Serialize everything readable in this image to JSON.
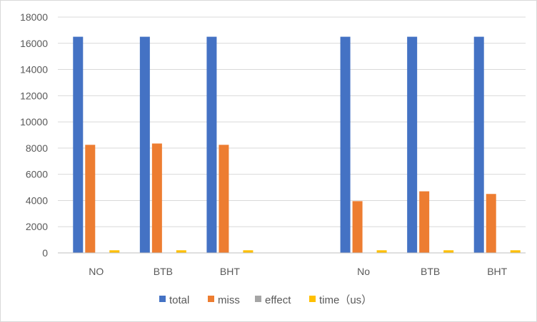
{
  "chart_data": {
    "type": "bar",
    "title": "",
    "xlabel": "",
    "ylabel": "",
    "ylim": [
      0,
      18000
    ],
    "yticks": [
      0,
      2000,
      4000,
      6000,
      8000,
      10000,
      12000,
      14000,
      16000,
      18000
    ],
    "grid": true,
    "legend_position": "bottom",
    "categories": [
      "NO",
      "BTB",
      "BHT",
      "",
      "No",
      "BTB",
      "BHT"
    ],
    "series": [
      {
        "name": "total",
        "color": "#4472C4",
        "values": [
          16500,
          16500,
          16500,
          null,
          16500,
          16500,
          16500
        ]
      },
      {
        "name": "miss",
        "color": "#ED7D31",
        "values": [
          8250,
          8350,
          8250,
          null,
          3950,
          4700,
          4500
        ]
      },
      {
        "name": "effect",
        "color": "#A5A5A5",
        "values": [
          0,
          0,
          0,
          null,
          0,
          0,
          0
        ]
      },
      {
        "name": "time（us）",
        "color": "#FFC000",
        "values": [
          200,
          200,
          200,
          null,
          200,
          200,
          200
        ]
      }
    ]
  }
}
